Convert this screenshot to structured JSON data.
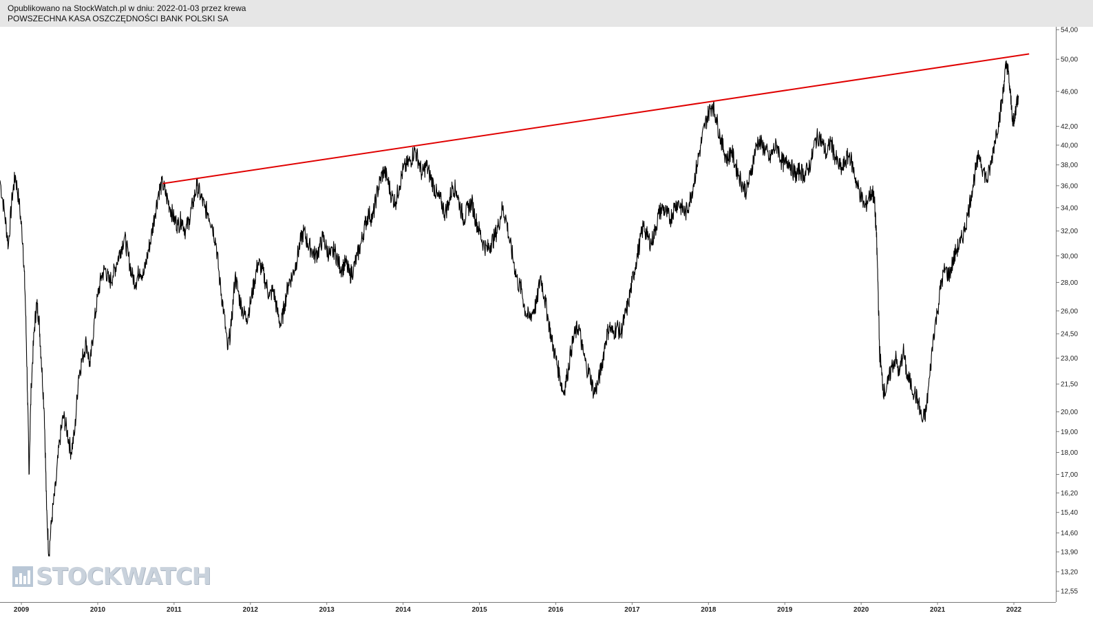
{
  "header": {
    "line1": "Opublikowano na StockWatch.pl w dniu: 2022-01-03 przez krewa",
    "line2": "POWSZECHNA KASA OSZCZĘDNOŚCI BANK POLSKI SA"
  },
  "watermark": {
    "text": "STOCKWATCH",
    "icon": "bar-chart-icon"
  },
  "colors": {
    "price": "#000000",
    "trendline": "#e00000",
    "header_bg": "#e6e6e6"
  },
  "chart_data": {
    "type": "line",
    "title": "",
    "xlabel": "",
    "ylabel": "",
    "x_range": [
      2008.72,
      2022.55
    ],
    "y_scale": "log",
    "ylim": [
      12.2,
      54.4
    ],
    "y_ticks": [
      54.0,
      50.0,
      46.0,
      42.0,
      40.0,
      38.0,
      36.0,
      34.0,
      32.0,
      30.0,
      28.0,
      26.0,
      24.5,
      23.0,
      21.5,
      20.0,
      19.0,
      18.0,
      17.0,
      16.2,
      15.4,
      14.6,
      13.9,
      13.2,
      12.55
    ],
    "y_tick_labels": [
      "54,00",
      "50,00",
      "46,00",
      "42,00",
      "40,00",
      "38,00",
      "36,00",
      "34,00",
      "32,00",
      "30,00",
      "28,00",
      "26,00",
      "24,50",
      "23,00",
      "21,50",
      "20,00",
      "19,00",
      "18,00",
      "17,00",
      "16,20",
      "15,40",
      "14,60",
      "13,90",
      "13,20",
      "12,55"
    ],
    "x_ticks": [
      2009,
      2010,
      2011,
      2012,
      2013,
      2014,
      2015,
      2016,
      2017,
      2018,
      2019,
      2020,
      2021,
      2022
    ],
    "x_tick_labels": [
      "2009",
      "2010",
      "2011",
      "2012",
      "2013",
      "2014",
      "2015",
      "2016",
      "2017",
      "2018",
      "2019",
      "2020",
      "2021",
      "2022"
    ],
    "grid": false,
    "series": [
      {
        "values_xy": [
          [
            2008.72,
            36.5
          ],
          [
            2008.78,
            33.5
          ],
          [
            2008.83,
            30.8
          ],
          [
            2008.88,
            35.0
          ],
          [
            2008.92,
            37.0
          ],
          [
            2008.97,
            34.5
          ],
          [
            2009.02,
            31.0
          ],
          [
            2009.05,
            27.0
          ],
          [
            2009.08,
            21.0
          ],
          [
            2009.1,
            17.0
          ],
          [
            2009.13,
            21.5
          ],
          [
            2009.17,
            24.8
          ],
          [
            2009.2,
            26.5
          ],
          [
            2009.23,
            25.5
          ],
          [
            2009.26,
            23.0
          ],
          [
            2009.3,
            20.0
          ],
          [
            2009.33,
            15.5
          ],
          [
            2009.36,
            13.8
          ],
          [
            2009.4,
            15.2
          ],
          [
            2009.45,
            16.5
          ],
          [
            2009.5,
            18.5
          ],
          [
            2009.55,
            19.8
          ],
          [
            2009.6,
            19.0
          ],
          [
            2009.65,
            18.0
          ],
          [
            2009.7,
            19.0
          ],
          [
            2009.75,
            22.0
          ],
          [
            2009.8,
            23.0
          ],
          [
            2009.85,
            24.0
          ],
          [
            2009.9,
            22.5
          ],
          [
            2009.95,
            25.0
          ],
          [
            2010.0,
            27.0
          ],
          [
            2010.05,
            28.5
          ],
          [
            2010.1,
            29.0
          ],
          [
            2010.15,
            28.0
          ],
          [
            2010.2,
            28.5
          ],
          [
            2010.25,
            29.5
          ],
          [
            2010.3,
            30.5
          ],
          [
            2010.35,
            31.5
          ],
          [
            2010.4,
            30.0
          ],
          [
            2010.45,
            28.5
          ],
          [
            2010.5,
            28.0
          ],
          [
            2010.55,
            29.0
          ],
          [
            2010.6,
            28.5
          ],
          [
            2010.65,
            30.0
          ],
          [
            2010.7,
            31.5
          ],
          [
            2010.75,
            33.5
          ],
          [
            2010.8,
            35.5
          ],
          [
            2010.85,
            36.2
          ],
          [
            2010.9,
            35.0
          ],
          [
            2010.95,
            34.0
          ],
          [
            2011.0,
            33.0
          ],
          [
            2011.05,
            32.5
          ],
          [
            2011.1,
            33.0
          ],
          [
            2011.15,
            32.0
          ],
          [
            2011.2,
            33.0
          ],
          [
            2011.25,
            34.5
          ],
          [
            2011.3,
            36.0
          ],
          [
            2011.35,
            35.0
          ],
          [
            2011.4,
            34.0
          ],
          [
            2011.45,
            33.5
          ],
          [
            2011.5,
            32.5
          ],
          [
            2011.55,
            31.0
          ],
          [
            2011.6,
            28.0
          ],
          [
            2011.65,
            26.0
          ],
          [
            2011.7,
            23.5
          ],
          [
            2011.75,
            25.0
          ],
          [
            2011.8,
            28.5
          ],
          [
            2011.85,
            27.0
          ],
          [
            2011.9,
            26.0
          ],
          [
            2011.95,
            25.5
          ],
          [
            2012.0,
            26.5
          ],
          [
            2012.05,
            28.0
          ],
          [
            2012.1,
            29.5
          ],
          [
            2012.15,
            29.0
          ],
          [
            2012.2,
            28.0
          ],
          [
            2012.25,
            27.0
          ],
          [
            2012.3,
            27.5
          ],
          [
            2012.35,
            26.0
          ],
          [
            2012.4,
            25.0
          ],
          [
            2012.45,
            26.5
          ],
          [
            2012.5,
            28.0
          ],
          [
            2012.55,
            28.5
          ],
          [
            2012.6,
            29.5
          ],
          [
            2012.65,
            31.0
          ],
          [
            2012.7,
            32.0
          ],
          [
            2012.75,
            31.0
          ],
          [
            2012.8,
            30.5
          ],
          [
            2012.85,
            30.0
          ],
          [
            2012.9,
            30.5
          ],
          [
            2012.95,
            31.5
          ],
          [
            2013.0,
            30.5
          ],
          [
            2013.05,
            30.0
          ],
          [
            2013.1,
            30.5
          ],
          [
            2013.15,
            29.5
          ],
          [
            2013.2,
            29.0
          ],
          [
            2013.25,
            29.5
          ],
          [
            2013.3,
            28.5
          ],
          [
            2013.35,
            29.0
          ],
          [
            2013.4,
            30.0
          ],
          [
            2013.45,
            31.0
          ],
          [
            2013.5,
            32.5
          ],
          [
            2013.55,
            33.5
          ],
          [
            2013.6,
            33.0
          ],
          [
            2013.65,
            35.0
          ],
          [
            2013.7,
            36.5
          ],
          [
            2013.75,
            37.5
          ],
          [
            2013.8,
            36.5
          ],
          [
            2013.85,
            35.0
          ],
          [
            2013.9,
            34.5
          ],
          [
            2013.95,
            36.0
          ],
          [
            2014.0,
            37.5
          ],
          [
            2014.05,
            38.0
          ],
          [
            2014.1,
            38.5
          ],
          [
            2014.15,
            39.5
          ],
          [
            2014.2,
            38.5
          ],
          [
            2014.25,
            37.0
          ],
          [
            2014.3,
            38.0
          ],
          [
            2014.35,
            37.0
          ],
          [
            2014.4,
            36.0
          ],
          [
            2014.45,
            35.0
          ],
          [
            2014.5,
            34.5
          ],
          [
            2014.55,
            33.5
          ],
          [
            2014.6,
            34.5
          ],
          [
            2014.65,
            36.0
          ],
          [
            2014.7,
            35.5
          ],
          [
            2014.75,
            34.0
          ],
          [
            2014.8,
            33.0
          ],
          [
            2014.85,
            34.0
          ],
          [
            2014.9,
            34.5
          ],
          [
            2014.95,
            33.0
          ],
          [
            2015.0,
            32.0
          ],
          [
            2015.05,
            31.0
          ],
          [
            2015.1,
            30.5
          ],
          [
            2015.15,
            31.0
          ],
          [
            2015.2,
            31.5
          ],
          [
            2015.25,
            32.5
          ],
          [
            2015.3,
            34.0
          ],
          [
            2015.35,
            33.0
          ],
          [
            2015.4,
            31.0
          ],
          [
            2015.45,
            29.5
          ],
          [
            2015.5,
            28.0
          ],
          [
            2015.55,
            27.5
          ],
          [
            2015.6,
            26.0
          ],
          [
            2015.65,
            25.5
          ],
          [
            2015.7,
            26.0
          ],
          [
            2015.75,
            26.5
          ],
          [
            2015.8,
            28.5
          ],
          [
            2015.85,
            27.0
          ],
          [
            2015.9,
            25.5
          ],
          [
            2015.95,
            24.0
          ],
          [
            2016.0,
            23.0
          ],
          [
            2016.05,
            22.0
          ],
          [
            2016.1,
            21.0
          ],
          [
            2016.15,
            22.0
          ],
          [
            2016.2,
            23.5
          ],
          [
            2016.25,
            24.5
          ],
          [
            2016.3,
            25.0
          ],
          [
            2016.35,
            23.5
          ],
          [
            2016.4,
            22.5
          ],
          [
            2016.45,
            22.0
          ],
          [
            2016.5,
            21.0
          ],
          [
            2016.55,
            21.5
          ],
          [
            2016.6,
            22.5
          ],
          [
            2016.65,
            24.0
          ],
          [
            2016.7,
            25.0
          ],
          [
            2016.75,
            24.5
          ],
          [
            2016.8,
            25.0
          ],
          [
            2016.85,
            24.5
          ],
          [
            2016.9,
            25.5
          ],
          [
            2016.95,
            26.5
          ],
          [
            2017.0,
            28.0
          ],
          [
            2017.05,
            29.5
          ],
          [
            2017.1,
            31.0
          ],
          [
            2017.15,
            32.5
          ],
          [
            2017.2,
            31.5
          ],
          [
            2017.25,
            31.0
          ],
          [
            2017.3,
            32.0
          ],
          [
            2017.35,
            33.5
          ],
          [
            2017.4,
            34.0
          ],
          [
            2017.45,
            33.5
          ],
          [
            2017.5,
            33.0
          ],
          [
            2017.55,
            34.0
          ],
          [
            2017.6,
            34.5
          ],
          [
            2017.65,
            34.0
          ],
          [
            2017.7,
            33.5
          ],
          [
            2017.75,
            34.5
          ],
          [
            2017.8,
            36.0
          ],
          [
            2017.85,
            38.0
          ],
          [
            2017.9,
            40.0
          ],
          [
            2017.95,
            42.0
          ],
          [
            2018.0,
            43.5
          ],
          [
            2018.05,
            44.5
          ],
          [
            2018.1,
            43.0
          ],
          [
            2018.15,
            41.0
          ],
          [
            2018.2,
            39.5
          ],
          [
            2018.25,
            38.5
          ],
          [
            2018.3,
            39.5
          ],
          [
            2018.35,
            38.0
          ],
          [
            2018.4,
            37.0
          ],
          [
            2018.45,
            36.0
          ],
          [
            2018.5,
            35.5
          ],
          [
            2018.55,
            37.0
          ],
          [
            2018.6,
            39.0
          ],
          [
            2018.65,
            40.5
          ],
          [
            2018.7,
            40.0
          ],
          [
            2018.75,
            39.5
          ],
          [
            2018.8,
            38.5
          ],
          [
            2018.85,
            39.5
          ],
          [
            2018.9,
            40.0
          ],
          [
            2018.95,
            38.5
          ],
          [
            2019.0,
            38.0
          ],
          [
            2019.05,
            38.5
          ],
          [
            2019.1,
            37.5
          ],
          [
            2019.15,
            37.0
          ],
          [
            2019.2,
            37.5
          ],
          [
            2019.25,
            37.0
          ],
          [
            2019.3,
            37.5
          ],
          [
            2019.35,
            38.5
          ],
          [
            2019.4,
            40.5
          ],
          [
            2019.45,
            41.0
          ],
          [
            2019.5,
            40.0
          ],
          [
            2019.55,
            39.0
          ],
          [
            2019.6,
            40.5
          ],
          [
            2019.65,
            39.0
          ],
          [
            2019.7,
            38.0
          ],
          [
            2019.75,
            37.5
          ],
          [
            2019.8,
            38.5
          ],
          [
            2019.85,
            39.0
          ],
          [
            2019.9,
            37.5
          ],
          [
            2019.95,
            36.0
          ],
          [
            2020.0,
            35.0
          ],
          [
            2020.05,
            34.0
          ],
          [
            2020.1,
            35.0
          ],
          [
            2020.15,
            35.5
          ],
          [
            2020.18,
            34.0
          ],
          [
            2020.2,
            31.5
          ],
          [
            2020.22,
            28.0
          ],
          [
            2020.24,
            23.5
          ],
          [
            2020.27,
            22.0
          ],
          [
            2020.3,
            21.0
          ],
          [
            2020.35,
            21.5
          ],
          [
            2020.4,
            22.5
          ],
          [
            2020.45,
            23.0
          ],
          [
            2020.5,
            22.0
          ],
          [
            2020.55,
            23.5
          ],
          [
            2020.6,
            22.0
          ],
          [
            2020.65,
            21.5
          ],
          [
            2020.7,
            21.0
          ],
          [
            2020.75,
            20.5
          ],
          [
            2020.8,
            19.5
          ],
          [
            2020.85,
            20.0
          ],
          [
            2020.9,
            22.0
          ],
          [
            2020.95,
            24.5
          ],
          [
            2021.0,
            26.0
          ],
          [
            2021.05,
            28.0
          ],
          [
            2021.1,
            29.0
          ],
          [
            2021.15,
            28.5
          ],
          [
            2021.2,
            29.5
          ],
          [
            2021.25,
            30.5
          ],
          [
            2021.3,
            31.0
          ],
          [
            2021.35,
            32.0
          ],
          [
            2021.4,
            33.5
          ],
          [
            2021.45,
            35.5
          ],
          [
            2021.5,
            37.5
          ],
          [
            2021.55,
            39.0
          ],
          [
            2021.6,
            37.5
          ],
          [
            2021.65,
            36.5
          ],
          [
            2021.7,
            38.0
          ],
          [
            2021.75,
            40.5
          ],
          [
            2021.8,
            42.5
          ],
          [
            2021.85,
            45.0
          ],
          [
            2021.88,
            48.0
          ],
          [
            2021.91,
            49.5
          ],
          [
            2021.94,
            47.0
          ],
          [
            2021.97,
            44.0
          ],
          [
            2022.0,
            42.0
          ],
          [
            2022.03,
            44.5
          ],
          [
            2022.06,
            45.5
          ]
        ]
      },
      {
        "values_xy": [
          [
            2010.85,
            36.2
          ],
          [
            2022.2,
            50.7
          ]
        ]
      }
    ]
  }
}
